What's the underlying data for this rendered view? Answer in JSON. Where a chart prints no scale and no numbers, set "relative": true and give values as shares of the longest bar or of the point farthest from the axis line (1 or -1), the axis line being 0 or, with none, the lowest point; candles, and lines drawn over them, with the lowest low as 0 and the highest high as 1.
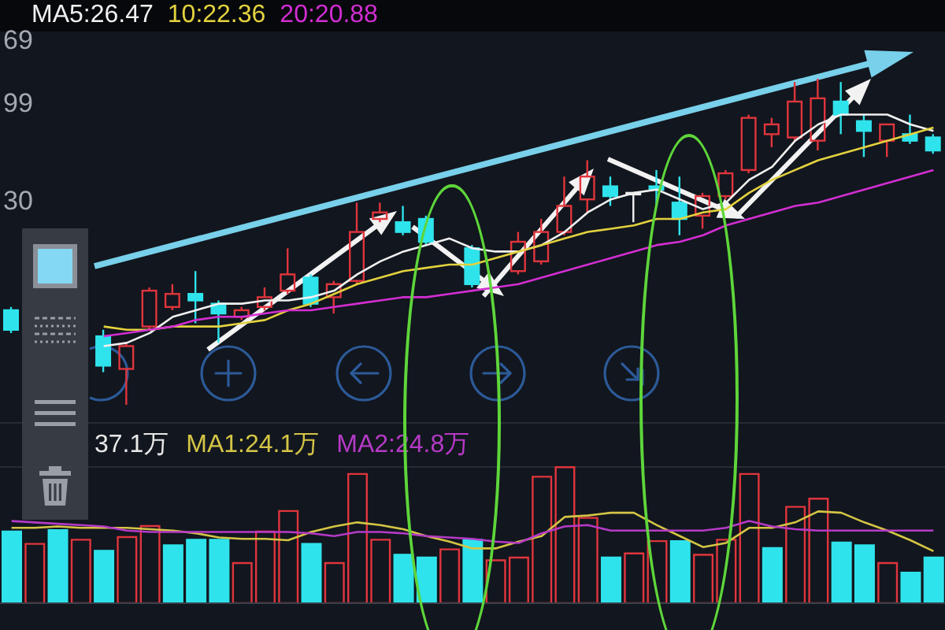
{
  "chart_data": [
    {
      "type": "candlestick",
      "relative": true,
      "legend": "top left",
      "categories": [
        null,
        null,
        null,
        null,
        null,
        null,
        null,
        null,
        null,
        null,
        null,
        null,
        null,
        null,
        null,
        null,
        null,
        null,
        null,
        null,
        null,
        null,
        null,
        null,
        null,
        null,
        null,
        null,
        null,
        null,
        null,
        null,
        null,
        null,
        null,
        null,
        null,
        null,
        null,
        null,
        null
      ],
      "ohlc": [
        [
          0.29,
          0.3,
          0.22,
          0.23
        ],
        null,
        null,
        null,
        [
          0.21,
          0.23,
          0.1,
          0.12
        ],
        [
          0.11,
          0.19,
          0,
          0.18
        ],
        [
          0.24,
          0.36,
          0.23,
          0.35
        ],
        [
          0.3,
          0.37,
          0.29,
          0.34
        ],
        [
          0.34,
          0.41,
          0.25,
          0.32
        ],
        [
          0.31,
          0.32,
          0.19,
          0.28
        ],
        [
          0.27,
          0.3,
          0.26,
          0.29
        ],
        [
          0.3,
          0.36,
          0.29,
          0.33
        ],
        [
          0.35,
          0.48,
          0.34,
          0.4
        ],
        [
          0.39,
          0.4,
          0.3,
          0.31
        ],
        [
          0.33,
          0.38,
          0.28,
          0.37
        ],
        [
          0.38,
          0.62,
          0.37,
          0.53
        ],
        [
          0.57,
          0.62,
          0.56,
          0.59
        ],
        [
          0.56,
          0.61,
          0.52,
          0.53
        ],
        [
          0.57,
          0.58,
          0.49,
          0.5
        ],
        null,
        [
          0.48,
          0.49,
          0.36,
          0.37
        ],
        null,
        [
          0.41,
          0.53,
          0.4,
          0.5
        ],
        [
          0.44,
          0.57,
          0.43,
          0.53
        ],
        [
          0.53,
          0.7,
          0.52,
          0.61
        ],
        [
          0.63,
          0.75,
          0.59,
          0.7
        ],
        [
          0.67,
          0.7,
          0.61,
          0.64
        ],
        [
          0.65,
          0.65,
          0.56,
          0.65
        ],
        [
          0.67,
          0.72,
          0.61,
          0.66
        ],
        [
          0.62,
          0.7,
          0.52,
          0.57
        ],
        [
          0.58,
          0.65,
          0.54,
          0.64
        ],
        [
          0.64,
          0.72,
          0.63,
          0.71
        ],
        [
          0.72,
          0.89,
          0.71,
          0.88
        ],
        [
          0.83,
          0.88,
          0.79,
          0.86
        ],
        [
          0.82,
          0.99,
          0.81,
          0.93
        ],
        [
          0.81,
          1,
          0.78,
          0.94
        ],
        [
          0.93,
          0.99,
          0.83,
          0.89
        ],
        [
          0.87,
          0.89,
          0.76,
          0.84
        ],
        [
          0.81,
          0.86,
          0.76,
          0.86
        ],
        [
          0.83,
          0.89,
          0.8,
          0.81
        ],
        [
          0.82,
          0.83,
          0.77,
          0.78
        ]
      ],
      "colors": [
        "#2fe3ec",
        null,
        null,
        null,
        "#2fe3ec",
        "#e0353d",
        "#e0353d",
        "#e0353d",
        "#2fe3ec",
        "#2fe3ec",
        "#e0353d",
        "#e0353d",
        "#e0353d",
        "#2fe3ec",
        "#e0353d",
        "#e0353d",
        "#e0353d",
        "#2fe3ec",
        "#2fe3ec",
        null,
        "#2fe3ec",
        null,
        "#e0353d",
        "#e0353d",
        "#e0353d",
        "#e0353d",
        "#2fe3ec",
        "#f0f0f0",
        "#2fe3ec",
        "#2fe3ec",
        "#e0353d",
        "#e0353d",
        "#e0353d",
        "#e0353d",
        "#e0353d",
        "#e0353d",
        "#2fe3ec",
        "#2fe3ec",
        "#e0353d",
        "#2fe3ec",
        "#2fe3ec"
      ],
      "series": [
        {
          "type": "line",
          "name": "MA5:26.47",
          "color": "#f0f0f0",
          "values": [
            null,
            null,
            null,
            null,
            0.18,
            0.19,
            0.22,
            0.27,
            0.29,
            0.31,
            0.31,
            0.32,
            0.32,
            0.33,
            0.35,
            0.4,
            0.44,
            0.47,
            0.49,
            0.51,
            0.48,
            0.47,
            0.47,
            0.49,
            0.53,
            0.59,
            0.63,
            0.65,
            0.66,
            0.63,
            0.6,
            0.62,
            0.69,
            0.73,
            0.81,
            0.86,
            0.89,
            0.89,
            0.89,
            0.86,
            0.84
          ]
        },
        {
          "type": "line",
          "name": "10:22.36",
          "color": "#e3d23f",
          "values": [
            null,
            null,
            null,
            null,
            0.24,
            0.23,
            0.23,
            0.24,
            0.24,
            0.24,
            0.25,
            0.26,
            0.29,
            0.31,
            0.34,
            0.37,
            0.39,
            0.41,
            0.42,
            0.43,
            0.43,
            0.45,
            0.47,
            0.49,
            0.51,
            0.53,
            0.54,
            0.55,
            0.57,
            0.57,
            0.59,
            0.6,
            0.65,
            0.69,
            0.72,
            0.75,
            0.77,
            0.79,
            0.81,
            0.83,
            0.85
          ]
        },
        {
          "type": "line",
          "name": "20:20.88",
          "color": "#d22ed2",
          "values": [
            null,
            null,
            null,
            null,
            0.21,
            0.22,
            0.23,
            0.24,
            0.26,
            0.27,
            0.27,
            0.28,
            0.29,
            0.29,
            0.3,
            0.31,
            0.32,
            0.33,
            0.33,
            0.34,
            0.35,
            0.36,
            0.37,
            0.39,
            0.41,
            0.43,
            0.45,
            0.47,
            0.49,
            0.5,
            0.52,
            0.55,
            0.57,
            0.59,
            0.61,
            0.62,
            0.64,
            0.66,
            0.68,
            0.7,
            0.72
          ]
        }
      ],
      "annotations": [
        "69",
        "99",
        "30"
      ]
    },
    {
      "type": "bar",
      "relative": true,
      "legend": "top left",
      "categories": [
        null,
        null,
        null,
        null,
        null,
        null,
        null,
        null,
        null,
        null,
        null,
        null,
        null,
        null,
        null,
        null,
        null,
        null,
        null,
        null,
        null,
        null,
        null,
        null,
        null,
        null,
        null,
        null,
        null,
        null,
        null,
        null,
        null,
        null,
        null,
        null,
        null,
        null,
        null,
        null,
        null
      ],
      "series": [
        {
          "type": "bar",
          "colors": [
            "#2fe3ec",
            "#e0353d",
            "#2fe3ec",
            "#e0353d",
            "#2fe3ec",
            "#e0353d",
            "#e0353d",
            "#2fe3ec",
            "#2fe3ec",
            "#2fe3ec",
            "#e0353d",
            "#e0353d",
            "#e0353d",
            "#2fe3ec",
            "#e0353d",
            "#e0353d",
            "#e0353d",
            "#2fe3ec",
            "#2fe3ec",
            "#e0353d",
            "#2fe3ec",
            "#e0353d",
            "#e0353d",
            "#e0353d",
            "#e0353d",
            "#e0353d",
            "#2fe3ec",
            "#e0353d",
            "#e0353d",
            "#2fe3ec",
            "#e0353d",
            "#e0353d",
            "#e0353d",
            "#2fe3ec",
            "#e0353d",
            "#e0353d",
            "#2fe3ec",
            "#2fe3ec",
            "#e0353d",
            "#2fe3ec",
            "#2fe3ec"
          ],
          "values": [
            0.53,
            0.44,
            0.54,
            0.47,
            0.39,
            0.49,
            0.57,
            0.43,
            0.47,
            0.47,
            0.3,
            0.53,
            0.68,
            0.44,
            0.3,
            0.95,
            0.47,
            0.36,
            0.34,
            0.4,
            0.47,
            0.32,
            0.34,
            0.93,
            1,
            0.63,
            0.34,
            0.37,
            0.46,
            0.46,
            0.36,
            0.47,
            0.95,
            0.41,
            0.71,
            0.77,
            0.45,
            0.43,
            0.3,
            0.23,
            0.34
          ]
        },
        {
          "type": "line",
          "name": "MA1:24.1万",
          "color": "#d4c545",
          "values": [
            0.55,
            0.55,
            0.56,
            0.55,
            0.55,
            0.55,
            0.54,
            0.53,
            0.51,
            0.48,
            0.47,
            0.47,
            0.46,
            0.52,
            0.56,
            0.59,
            0.57,
            0.54,
            0.49,
            0.45,
            0.4,
            0.4,
            0.45,
            0.49,
            0.63,
            0.64,
            0.66,
            0.66,
            0.57,
            0.49,
            0.41,
            0.44,
            0.55,
            0.55,
            0.59,
            0.67,
            0.66,
            0.59,
            0.53,
            0.46,
            0.38
          ]
        },
        {
          "type": "line",
          "name": "MA2:24.8万",
          "color": "#b53ac6",
          "values": [
            0.6,
            0.59,
            0.58,
            0.57,
            0.56,
            0.53,
            0.52,
            0.52,
            0.52,
            0.52,
            0.52,
            0.52,
            0.52,
            0.51,
            0.49,
            0.52,
            0.52,
            0.51,
            0.49,
            0.48,
            0.47,
            0.45,
            0.44,
            0.51,
            0.56,
            0.57,
            0.53,
            0.53,
            0.53,
            0.53,
            0.53,
            0.55,
            0.6,
            0.56,
            0.54,
            0.53,
            0.53,
            0.53,
            0.53,
            0.53,
            0.53
          ]
        }
      ],
      "annotations": [
        "37.1万"
      ]
    }
  ]
}
